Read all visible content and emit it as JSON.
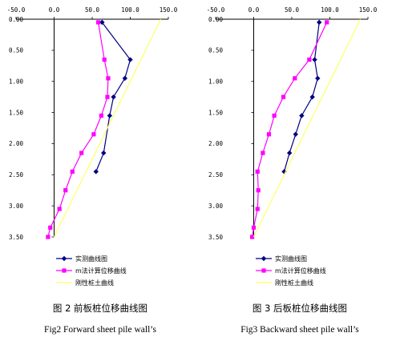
{
  "colors": {
    "measured": "#000080",
    "m_method": "#ff00ff",
    "rigid": "#ffff66"
  },
  "chart_data": [
    {
      "type": "line",
      "xlim": [
        -50,
        150
      ],
      "ylim": [
        0,
        3.5
      ],
      "y_inverted": true,
      "x_tick_labels": [
        "-50.0",
        "0.0",
        "50.0",
        "100.0",
        "150.0"
      ],
      "y_tick_labels": [
        "0.00",
        "0.50",
        "1.00",
        "1.50",
        "2.00",
        "2.50",
        "3.00",
        "3.50"
      ],
      "legend": [
        "实测曲线图",
        "m法计算位移曲线",
        "刚性桩土曲线"
      ],
      "legend_placement": "bottom",
      "caption_cn": "图 2 前板桩位移曲线图",
      "caption_en": "Fig2 Forward sheet pile wall’s",
      "series": [
        {
          "name": "实测曲线图",
          "color": "#000080",
          "marker": "diamond",
          "points": [
            [
              63,
              0.05
            ],
            [
              100,
              0.65
            ],
            [
              93,
              0.95
            ],
            [
              78,
              1.25
            ],
            [
              73,
              1.55
            ],
            [
              65,
              2.15
            ],
            [
              55,
              2.45
            ]
          ]
        },
        {
          "name": "m法计算位移曲线",
          "color": "#ff00ff",
          "marker": "square",
          "points": [
            [
              58,
              0.05
            ],
            [
              66,
              0.65
            ],
            [
              71,
              0.95
            ],
            [
              70,
              1.25
            ],
            [
              62,
              1.55
            ],
            [
              52,
              1.85
            ],
            [
              36,
              2.15
            ],
            [
              24,
              2.45
            ],
            [
              15,
              2.75
            ],
            [
              7,
              3.05
            ],
            [
              -5,
              3.35
            ],
            [
              -8,
              3.5
            ]
          ]
        },
        {
          "name": "刚性桩土曲线",
          "color": "#ffff66",
          "marker": "none",
          "points": [
            [
              140,
              0.0
            ],
            [
              0,
              3.5
            ]
          ]
        }
      ]
    },
    {
      "type": "line",
      "xlim": [
        -50,
        150
      ],
      "ylim": [
        0,
        3.5
      ],
      "y_inverted": true,
      "x_tick_labels": [
        "-50.0",
        "0.0",
        "50.0",
        "100.0",
        "150.0"
      ],
      "y_tick_labels": [
        "0.00",
        "0.50",
        "1.00",
        "1.50",
        "2.00",
        "2.50",
        "3.00",
        "3.50"
      ],
      "legend": [
        "实测曲线图",
        "m法计算位移曲线",
        "刚性桩土曲线"
      ],
      "legend_placement": "bottom",
      "caption_cn": "图 3 后板桩位移曲线图",
      "caption_en": "Fig3 Backward sheet pile wall’s",
      "series": [
        {
          "name": "实测曲线图",
          "color": "#000080",
          "marker": "diamond",
          "points": [
            [
              86,
              0.05
            ],
            [
              80,
              0.65
            ],
            [
              84,
              0.95
            ],
            [
              77,
              1.25
            ],
            [
              63,
              1.55
            ],
            [
              55,
              1.85
            ],
            [
              47,
              2.15
            ],
            [
              40,
              2.45
            ]
          ]
        },
        {
          "name": "m法计算位移曲线",
          "color": "#ff00ff",
          "marker": "square",
          "points": [
            [
              96,
              0.05
            ],
            [
              73,
              0.65
            ],
            [
              54,
              0.95
            ],
            [
              39,
              1.25
            ],
            [
              27,
              1.55
            ],
            [
              20,
              1.85
            ],
            [
              12,
              2.15
            ],
            [
              5,
              2.45
            ],
            [
              6,
              2.75
            ],
            [
              5,
              3.05
            ],
            [
              0,
              3.35
            ],
            [
              -2,
              3.5
            ]
          ]
        },
        {
          "name": "刚性桩土曲线",
          "color": "#ffff66",
          "marker": "none",
          "points": [
            [
              140,
              0.0
            ],
            [
              0,
              3.5
            ]
          ]
        }
      ]
    }
  ]
}
